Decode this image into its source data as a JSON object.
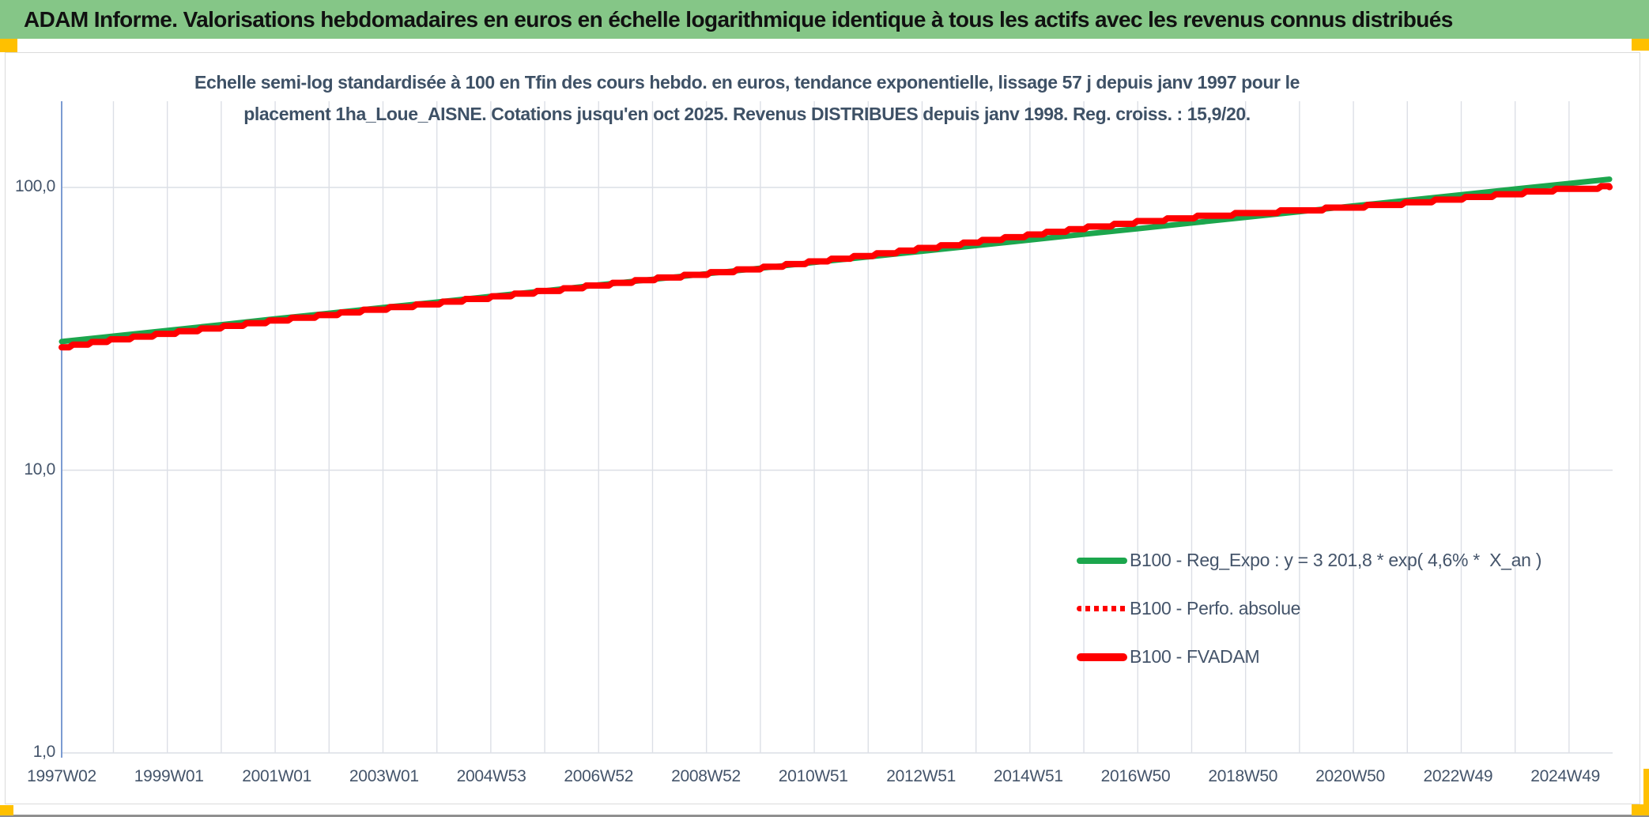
{
  "header": {
    "title": "ADAM Informe. Valorisations hebdomadaires en euros en échelle logarithmique identique à tous les actifs avec les revenus connus distribués",
    "background_color": "#85C687",
    "accent_color": "#FFC000"
  },
  "chart": {
    "title_line1": "Echelle semi-log standardisée à 100 en Tfin des cours hebdo. en euros, tendance exponentielle, lissage 57 j depuis janv 1997 pour le",
    "title_line2": "placement 1ha_Loue_AISNE. Cotations jusqu'en oct 2025. Revenus DISTRIBUES depuis janv 1998. Reg. croiss. : 15,9/20.",
    "legend": [
      {
        "label": "B100 - Reg_Expo : y = 3 201,8 * exp( 4,6% *  X_an )",
        "swatch": "green-solid"
      },
      {
        "label": "B100 - Perfo. absolue",
        "swatch": "red-dotted"
      },
      {
        "label": "B100 - FVADAM",
        "swatch": "red-solid"
      }
    ]
  },
  "chart_data": {
    "type": "line",
    "title": "Echelle semi-log standardisée à 100 en Tfin des cours hebdo. en euros, tendance exponentielle, lissage 57 j depuis janv 1997 pour le placement 1ha_Loue_AISNE. Cotations jusqu'en oct 2025. Revenus DISTRIBUES depuis janv 1998. Reg. croiss. : 15,9/20.",
    "x_axis": {
      "tick_labels": [
        "1997W02",
        "1999W01",
        "2001W01",
        "2003W01",
        "2004W53",
        "2006W52",
        "2008W52",
        "2010W51",
        "2012W51",
        "2014W51",
        "2016W50",
        "2018W50",
        "2020W50",
        "2022W49",
        "2024W49"
      ],
      "tick_years": [
        1997.04,
        1999.03,
        2001.03,
        2003.02,
        2005.01,
        2007.0,
        2008.99,
        2010.98,
        2012.98,
        2014.97,
        2016.96,
        2018.95,
        2020.94,
        2022.94,
        2024.93
      ],
      "range_years": [
        1997.04,
        2025.8
      ],
      "gridlines": "yearly"
    },
    "y_axis": {
      "scale": "log10",
      "tick_labels": [
        "100,0",
        "10,0",
        "1,0"
      ],
      "tick_values": [
        100,
        10,
        1
      ],
      "range": [
        1,
        200
      ]
    },
    "legend_position": "inside-lower-right",
    "x": [
      1997.04,
      1998,
      1999,
      2000,
      2001,
      2002,
      2003,
      2004,
      2005,
      2006,
      2007,
      2008,
      2009,
      2010,
      2011,
      2012,
      2013,
      2014,
      2015,
      2016,
      2017,
      2018,
      2019,
      2020,
      2021,
      2022,
      2023,
      2024,
      2025,
      2025.75
    ],
    "series": [
      {
        "name": "B100 - Reg_Expo : y = 3 201,8 * exp( 4,6% *  X_an )",
        "color": "#1CA64D",
        "style": "solid",
        "stroke_width": 7,
        "values": [
          28.5,
          29.8,
          31.2,
          32.7,
          34.3,
          35.9,
          37.6,
          39.3,
          41.2,
          43.1,
          45.2,
          47.3,
          49.5,
          51.8,
          54.3,
          56.8,
          59.5,
          62.3,
          65.2,
          68.3,
          71.5,
          74.9,
          78.4,
          82.1,
          86.0,
          90.0,
          94.2,
          98.7,
          103.3,
          106.9
        ]
      },
      {
        "name": "B100 - Perfo. absolue",
        "color": "#FF0000",
        "style": "dotted",
        "stroke_width": 4,
        "note": "coincides with FVADAM line, hidden beneath it",
        "values": [
          27.2,
          28.9,
          30.4,
          32.0,
          33.8,
          35.4,
          37.2,
          38.9,
          40.8,
          42.9,
          45.0,
          47.3,
          49.5,
          51.8,
          54.6,
          57.4,
          60.7,
          64.2,
          67.8,
          71.7,
          75.4,
          78.3,
          80.8,
          82.9,
          85.1,
          87.8,
          91.4,
          95.2,
          98.7,
          100.3
        ]
      },
      {
        "name": "B100 - FVADAM",
        "color": "#FF0000",
        "style": "stepped",
        "stroke_width": 8,
        "values": [
          27.2,
          28.9,
          30.4,
          32.0,
          33.8,
          35.4,
          37.2,
          38.9,
          40.8,
          42.9,
          45.0,
          47.3,
          49.5,
          51.8,
          54.6,
          57.4,
          60.7,
          64.2,
          67.8,
          71.7,
          75.4,
          78.3,
          80.8,
          82.9,
          85.1,
          87.8,
          91.4,
          95.2,
          98.7,
          100.3
        ]
      }
    ]
  }
}
